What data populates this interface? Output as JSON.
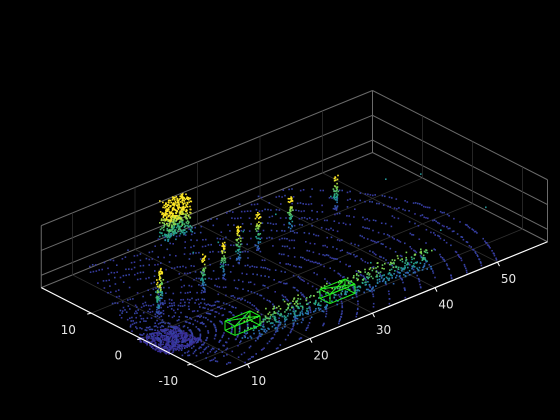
{
  "chart_data": {
    "type": "scatter",
    "title": "",
    "xlabel": "",
    "ylabel": "",
    "zlabel": "",
    "x_ticks": [
      "10",
      "20",
      "30",
      "40",
      "50"
    ],
    "y_ticks": [
      "-10",
      "0",
      "10"
    ],
    "xlim": [
      5,
      58
    ],
    "ylim": [
      -15,
      20
    ],
    "zlim": [
      -2,
      8
    ],
    "grid": true,
    "background": "#000000",
    "axis_color": "#ffffff",
    "box_color": "#6a6a6a",
    "grid_color": "#2f2f2f",
    "colormap": [
      "#3b1c8c",
      "#2d6fbd",
      "#1fa187",
      "#73d055",
      "#fde725"
    ],
    "series": [
      {
        "style": "point-cloud",
        "points": [
          [
            8,
            -2,
            -1.5
          ],
          [
            10,
            3,
            0.2
          ],
          [
            12,
            6,
            0.3
          ],
          [
            22,
            11,
            0.5
          ],
          [
            26,
            11,
            0.5
          ],
          [
            30,
            11,
            0.6
          ],
          [
            36,
            12,
            0.5
          ],
          [
            44,
            11,
            0.5
          ],
          [
            52,
            10,
            0.4
          ],
          [
            56,
            8,
            0.4
          ],
          [
            22,
            -7,
            0.3
          ],
          [
            36,
            -7,
            0.5
          ],
          [
            48,
            -6,
            0.4
          ],
          [
            56,
            -5,
            0.4
          ]
        ]
      }
    ],
    "annotations": [
      {
        "type": "cuboid",
        "color": "#22ee22",
        "center": [
          14,
          -9,
          0.5
        ],
        "size": [
          4,
          2,
          1.5
        ]
      },
      {
        "type": "cuboid",
        "color": "#22ee22",
        "center": [
          28,
          -10.5,
          0.5
        ],
        "size": [
          4,
          2,
          1.5
        ]
      }
    ]
  }
}
